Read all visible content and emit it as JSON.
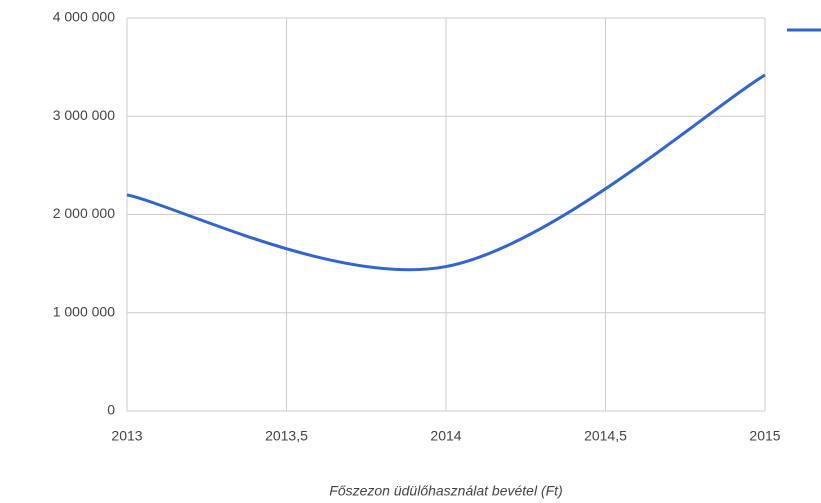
{
  "chart_data": {
    "type": "line",
    "x_label": "Főszezon üdülőhasználat bevétel (Ft)",
    "x": [
      2013,
      2014,
      2015
    ],
    "series": [
      {
        "color": "#3366cc",
        "values": [
          2200000,
          1470000,
          3420000
        ]
      }
    ],
    "xlim": [
      2013,
      2015
    ],
    "xticks": [
      2013,
      {
        "value": 2013.5,
        "label": "2013,5"
      },
      2014,
      {
        "value": 2014.5,
        "label": "2014,5"
      },
      2015
    ],
    "ylim": [
      0,
      4000000
    ],
    "yticks": [
      {
        "value": 0,
        "label": "0"
      },
      {
        "value": 1000000,
        "label": "1 000 000"
      },
      {
        "value": 2000000,
        "label": "2 000 000"
      },
      {
        "value": 3000000,
        "label": "3 000 000"
      },
      {
        "value": 4000000,
        "label": "4 000 000"
      }
    ],
    "grid": true,
    "smooth": true,
    "legend": "right"
  }
}
